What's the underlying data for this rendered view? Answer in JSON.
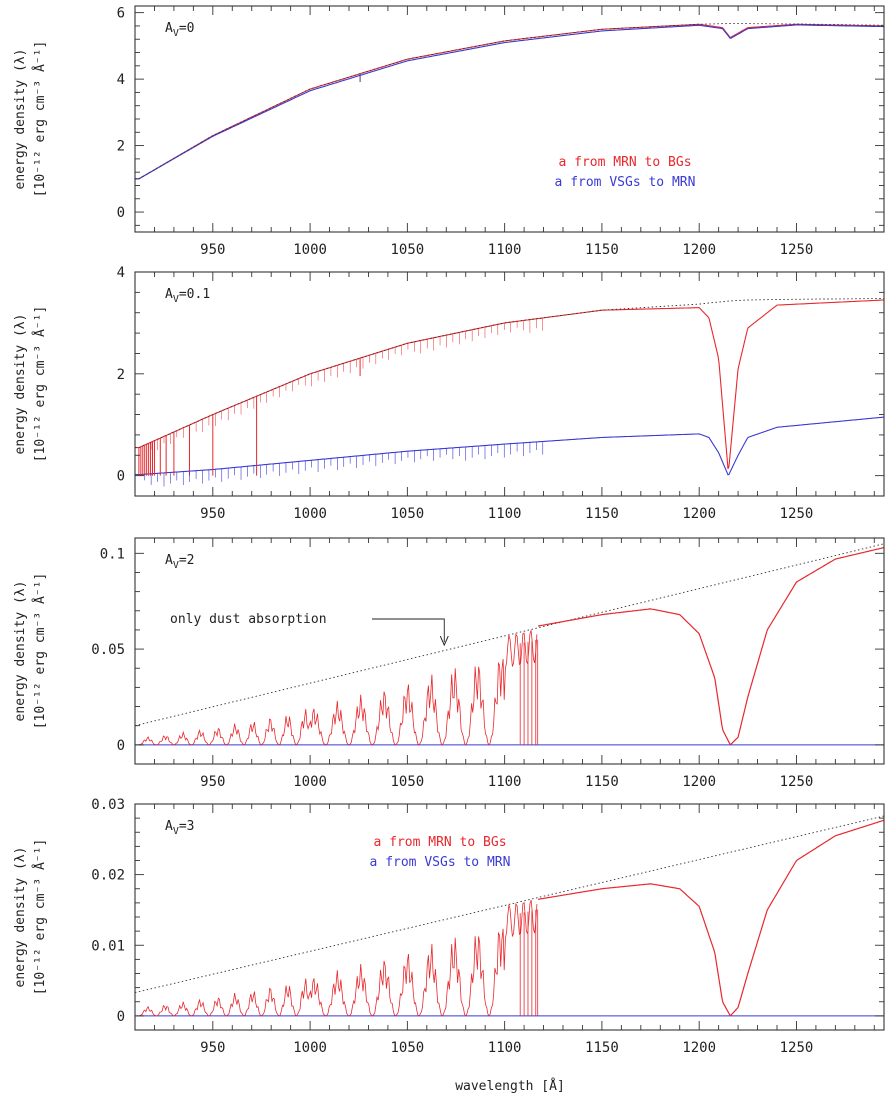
{
  "figure": {
    "xlabel": "wavelength [Å]",
    "x_ticks": [
      950,
      1000,
      1050,
      1100,
      1150,
      1200,
      1250
    ]
  },
  "chart_data": [
    {
      "type": "line",
      "panel_label": "A_V=0",
      "label_main": "A",
      "label_sub": "V",
      "label_rest": "=0",
      "ylabel_line1": "energy density (λ)",
      "ylabel_line2": "[10⁻¹² erg cm⁻³ Å⁻¹]",
      "xlim": [
        910,
        1295
      ],
      "ylim": [
        -0.6,
        6.2
      ],
      "y_ticks": [
        0,
        2,
        4,
        6
      ],
      "y_tick_labels": [
        "0",
        "2",
        "4",
        "6"
      ],
      "legend": [
        "a from MRN to BGs",
        "a from VSGs to MRN"
      ],
      "x": [
        912,
        950,
        1000,
        1050,
        1100,
        1150,
        1200,
        1212,
        1216,
        1225,
        1250,
        1295
      ],
      "series": [
        {
          "name": "a from MRN to BGs",
          "color": "#e8282d",
          "values": [
            1.0,
            2.3,
            3.7,
            4.6,
            5.15,
            5.5,
            5.65,
            5.55,
            5.25,
            5.55,
            5.65,
            5.6
          ]
        },
        {
          "name": "a from VSGs to MRN",
          "color": "#3a3ad6",
          "values": [
            1.0,
            2.28,
            3.65,
            4.55,
            5.1,
            5.45,
            5.62,
            5.52,
            5.22,
            5.52,
            5.63,
            5.58
          ]
        },
        {
          "name": "",
          "color": "#333333",
          "dotted": true,
          "values": [
            1.0,
            2.3,
            3.7,
            4.6,
            5.15,
            5.5,
            5.65,
            5.67,
            5.67,
            5.67,
            5.66,
            5.62
          ]
        }
      ],
      "absorption_lines": [
        1025.7
      ]
    },
    {
      "type": "line",
      "panel_label": "A_V=0.1",
      "label_main": "A",
      "label_sub": "V",
      "label_rest": "=0.1",
      "ylabel_line1": "energy density (λ)",
      "ylabel_line2": "[10⁻¹² erg cm⁻³ Å⁻¹]",
      "xlim": [
        910,
        1295
      ],
      "ylim": [
        -0.4,
        4.0
      ],
      "y_ticks": [
        0,
        2,
        4
      ],
      "y_tick_labels": [
        "0",
        "2",
        "4"
      ],
      "legend": [],
      "x": [
        912,
        950,
        1000,
        1050,
        1100,
        1150,
        1200,
        1205,
        1210,
        1215,
        1220,
        1225,
        1240,
        1295
      ],
      "series": [
        {
          "name": "a from MRN to BGs",
          "color": "#e8282d",
          "values": [
            0.55,
            1.2,
            2.0,
            2.6,
            3.0,
            3.25,
            3.3,
            3.1,
            2.3,
            0.05,
            2.1,
            2.9,
            3.35,
            3.45
          ]
        },
        {
          "name": "a from VSGs to MRN",
          "color": "#3a3ad6",
          "values": [
            0.02,
            0.12,
            0.3,
            0.48,
            0.62,
            0.75,
            0.82,
            0.75,
            0.45,
            0.0,
            0.4,
            0.75,
            0.95,
            1.15
          ]
        },
        {
          "name": "",
          "color": "#333333",
          "dotted": true,
          "values": [
            0.55,
            1.2,
            2.0,
            2.6,
            3.0,
            3.25,
            3.37,
            3.39,
            3.41,
            3.43,
            3.44,
            3.45,
            3.46,
            3.48
          ]
        }
      ],
      "absorption_lines": [
        972.5,
        1025.7
      ]
    },
    {
      "type": "line",
      "panel_label": "A_V=2",
      "label_main": "A",
      "label_sub": "V",
      "label_rest": "=2",
      "ylabel_line1": "energy density (λ)",
      "ylabel_line2": "[10⁻¹² erg cm⁻³ Å⁻¹]",
      "xlim": [
        910,
        1295
      ],
      "ylim": [
        -0.01,
        0.108
      ],
      "y_ticks": [
        0,
        0.05,
        0.1
      ],
      "y_tick_labels": [
        "0",
        "0.05",
        "0.1"
      ],
      "legend": [],
      "annotation": "only dust absorption",
      "annotation_x": 1070,
      "x": [
        1117,
        1150,
        1175,
        1190,
        1200,
        1208,
        1212,
        1216,
        1220,
        1225,
        1235,
        1250,
        1270,
        1295
      ],
      "series": [
        {
          "name": "a from MRN to BGs",
          "color": "#e8282d",
          "values": [
            0.062,
            0.068,
            0.071,
            0.068,
            0.058,
            0.035,
            0.008,
            0.0,
            0.004,
            0.025,
            0.06,
            0.085,
            0.097,
            0.103
          ]
        },
        {
          "name": "a from VSGs to MRN",
          "color": "#3a3ad6",
          "values": [
            0,
            0,
            0,
            0,
            0,
            0,
            0,
            0,
            0,
            0,
            0,
            0,
            0,
            0
          ]
        }
      ],
      "dust_only_line": {
        "x": [
          910,
          1295
        ],
        "values": [
          0.01,
          0.105
        ]
      },
      "line_forest": {
        "x_start": 912,
        "x_end": 1117,
        "note": "dense Lyman/H2 absorption band structure"
      }
    },
    {
      "type": "line",
      "panel_label": "A_V=3",
      "label_main": "A",
      "label_sub": "V",
      "label_rest": "=3",
      "ylabel_line1": "energy density (λ)",
      "ylabel_line2": "[10⁻¹² erg cm⁻³ Å⁻¹]",
      "xlim": [
        910,
        1295
      ],
      "ylim": [
        -0.002,
        0.03
      ],
      "y_ticks": [
        0,
        0.01,
        0.02,
        0.03
      ],
      "y_tick_labels": [
        "0",
        "0.01",
        "0.02",
        "0.03"
      ],
      "legend": [
        "a from MRN to BGs",
        "a from VSGs to MRN"
      ],
      "x": [
        1117,
        1150,
        1175,
        1190,
        1200,
        1208,
        1212,
        1216,
        1220,
        1225,
        1235,
        1250,
        1270,
        1295
      ],
      "series": [
        {
          "name": "a from MRN to BGs",
          "color": "#e8282d",
          "values": [
            0.0165,
            0.018,
            0.0187,
            0.018,
            0.0155,
            0.009,
            0.002,
            0.0,
            0.0012,
            0.006,
            0.015,
            0.022,
            0.0255,
            0.0277
          ]
        },
        {
          "name": "a from VSGs to MRN",
          "color": "#3a3ad6",
          "values": [
            0,
            0,
            0,
            0,
            0,
            0,
            0,
            0,
            0,
            0,
            0,
            0,
            0,
            0
          ]
        }
      ],
      "dust_only_line": {
        "x": [
          910,
          1295
        ],
        "values": [
          0.0033,
          0.0283
        ]
      },
      "line_forest": {
        "x_start": 912,
        "x_end": 1117,
        "note": "dense Lyman/H2 absorption band structure"
      }
    }
  ]
}
